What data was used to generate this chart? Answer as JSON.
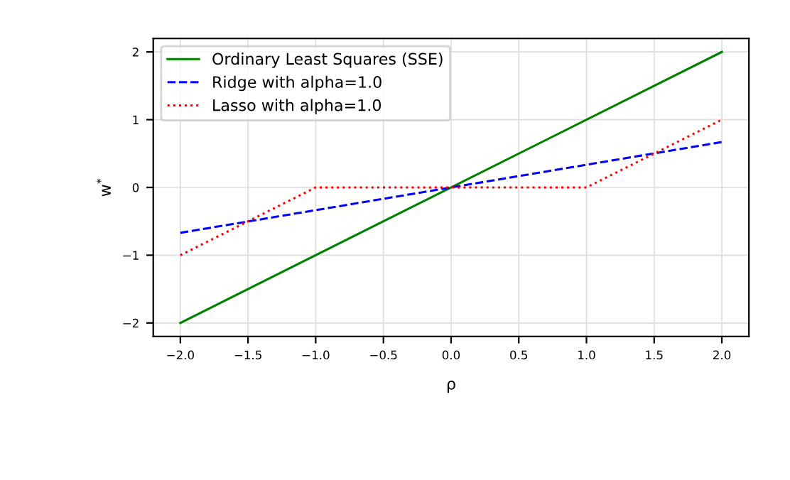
{
  "chart_data": {
    "type": "line",
    "xlabel": "ρ",
    "ylabel": "w$^{*}$",
    "xlim": [
      -2.2,
      2.2
    ],
    "ylim": [
      -2.2,
      2.2
    ],
    "xticks": [
      {
        "value": -2,
        "label": "−2.0"
      },
      {
        "value": -1.5,
        "label": "−1.5"
      },
      {
        "value": -1,
        "label": "−1.0"
      },
      {
        "value": -0.5,
        "label": "−0.5"
      },
      {
        "value": 0,
        "label": "0.0"
      },
      {
        "value": 0.5,
        "label": "0.5"
      },
      {
        "value": 1,
        "label": "1.0"
      },
      {
        "value": 1.5,
        "label": "1.5"
      },
      {
        "value": 2,
        "label": "2.0"
      }
    ],
    "yticks": [
      {
        "value": -2,
        "label": "−2"
      },
      {
        "value": -1,
        "label": "−1"
      },
      0,
      1,
      2
    ],
    "grid": true,
    "legend": "top left",
    "marker": "none",
    "series": [
      {
        "name": "Ordinary Least Squares (SSE)",
        "color": "#008000",
        "line_style": "solid",
        "x": [
          -2,
          2
        ],
        "values": [
          -2,
          2
        ]
      },
      {
        "name": "Ridge with alpha=1.0",
        "color": "#0000ff",
        "line_style": "dashed",
        "x": [
          -2,
          2
        ],
        "values": [
          -0.67,
          0.67
        ]
      },
      {
        "name": "Lasso with alpha=1.0",
        "color": "#ff0000",
        "line_style": "dotted",
        "x": [
          -2,
          -1,
          0,
          1,
          2
        ],
        "values": [
          -1,
          0,
          0,
          0,
          1
        ]
      }
    ]
  }
}
